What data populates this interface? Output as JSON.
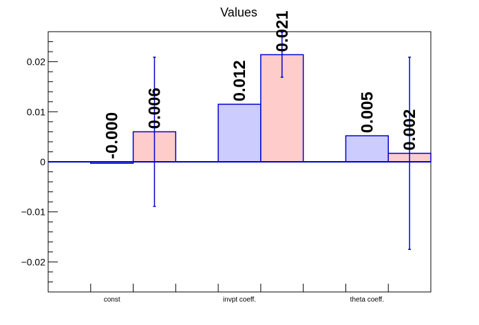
{
  "chart_data": {
    "type": "bar",
    "title": "Values",
    "xlabel": "",
    "ylabel": "",
    "categories": [
      "const",
      "invpt coeff.",
      "theta coeff."
    ],
    "ylim": [
      -0.026,
      0.026
    ],
    "yticks": [
      -0.02,
      -0.01,
      0,
      0.01,
      0.02
    ],
    "ytick_labels": [
      "−0.02",
      "−0.01",
      "0",
      "0.01",
      "0.02"
    ],
    "grid": false,
    "legend": "none",
    "series": [
      {
        "values": [
          -0.0003,
          0.0115,
          0.0052
        ],
        "errors": [
          0,
          0,
          0
        ],
        "labels": [
          "-0.000",
          "0.012",
          "0.005"
        ],
        "fill": "#ccccff",
        "stroke": "#0000cc"
      },
      {
        "values": [
          0.006,
          0.0214,
          0.0017
        ],
        "errors": [
          0.0149,
          0.0045,
          0.0192
        ],
        "labels": [
          "0.006",
          "0.021",
          "0.002"
        ],
        "fill": "#ffcccc",
        "stroke": "#0000cc"
      }
    ],
    "colors": {
      "axis": "#000000",
      "bar_edge": "#0000cc",
      "error_bar": "#0000cc"
    }
  }
}
